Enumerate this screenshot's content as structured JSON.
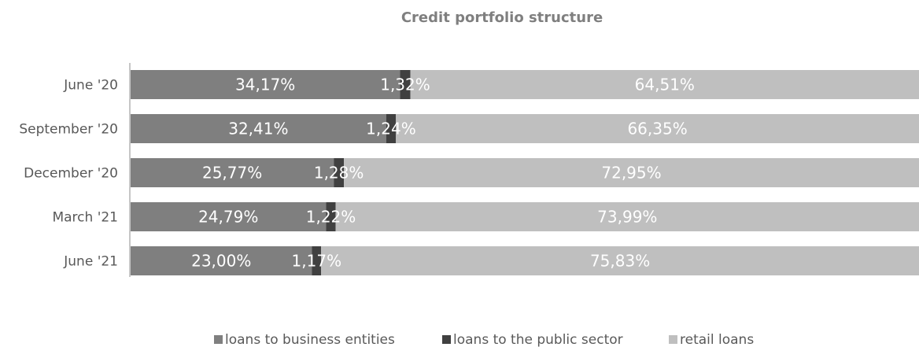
{
  "chart_data": {
    "type": "bar",
    "orientation": "horizontal",
    "stacked": true,
    "title": "Credit portfolio structure",
    "categories": [
      "June '20",
      "September '20",
      "December '20",
      "March '21",
      "June '21"
    ],
    "series": [
      {
        "name": "loans to business entities",
        "color": "#7f7f7f",
        "values": [
          34.17,
          32.41,
          25.77,
          24.79,
          23.0
        ],
        "labels": [
          "34,17%",
          "32,41%",
          "25,77%",
          "24,79%",
          "23,00%"
        ]
      },
      {
        "name": "loans to the public sector",
        "color": "#404040",
        "values": [
          1.32,
          1.24,
          1.28,
          1.22,
          1.17
        ],
        "labels": [
          "1,32%",
          "1,24%",
          "1,28%",
          "1,22%",
          "1,17%"
        ]
      },
      {
        "name": "retail loans",
        "color": "#bfbfbf",
        "values": [
          64.51,
          66.35,
          72.95,
          73.99,
          75.83
        ],
        "labels": [
          "64,51%",
          "66,35%",
          "72,95%",
          "73,99%",
          "75,83%"
        ]
      }
    ],
    "xlim": [
      0,
      100
    ],
    "grid": false,
    "legend_position": "bottom"
  }
}
